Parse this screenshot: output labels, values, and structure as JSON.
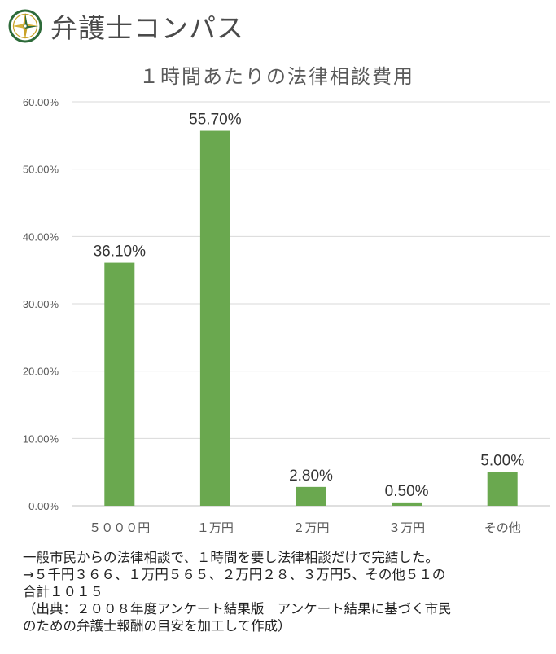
{
  "brand": {
    "name": "弁護士コンパス",
    "icon": "compass-icon"
  },
  "chart_data": {
    "type": "bar",
    "title": "１時間あたりの法律相談費用",
    "xlabel": "",
    "ylabel": "",
    "categories": [
      "５０００円",
      "１万円",
      "２万円",
      "３万円",
      "その他"
    ],
    "values": [
      36.1,
      55.7,
      2.8,
      0.5,
      5.0
    ],
    "value_labels": [
      "36.10%",
      "55.70%",
      "2.80%",
      "0.50%",
      "5.00%"
    ],
    "yticks": [
      0,
      10,
      20,
      30,
      40,
      50,
      60
    ],
    "ytick_labels": [
      "0.00%",
      "10.00%",
      "20.00%",
      "30.00%",
      "40.00%",
      "50.00%",
      "60.00%"
    ],
    "ylim": [
      0,
      60
    ],
    "grid": true,
    "legend": "none",
    "bar_color": "#6aa84f"
  },
  "note": {
    "lines": [
      "一般市民からの法律相談で、１時間を要し法律相談だけで完結した。",
      "→５千円３６６、１万円５６５、２万円２８、３万円5、その他５１の",
      "合計１０１５",
      "（出典：２００８年度アンケート結果版　アンケート結果に基づく市民",
      "のための弁護士報酬の目安を加工して作成）"
    ]
  }
}
